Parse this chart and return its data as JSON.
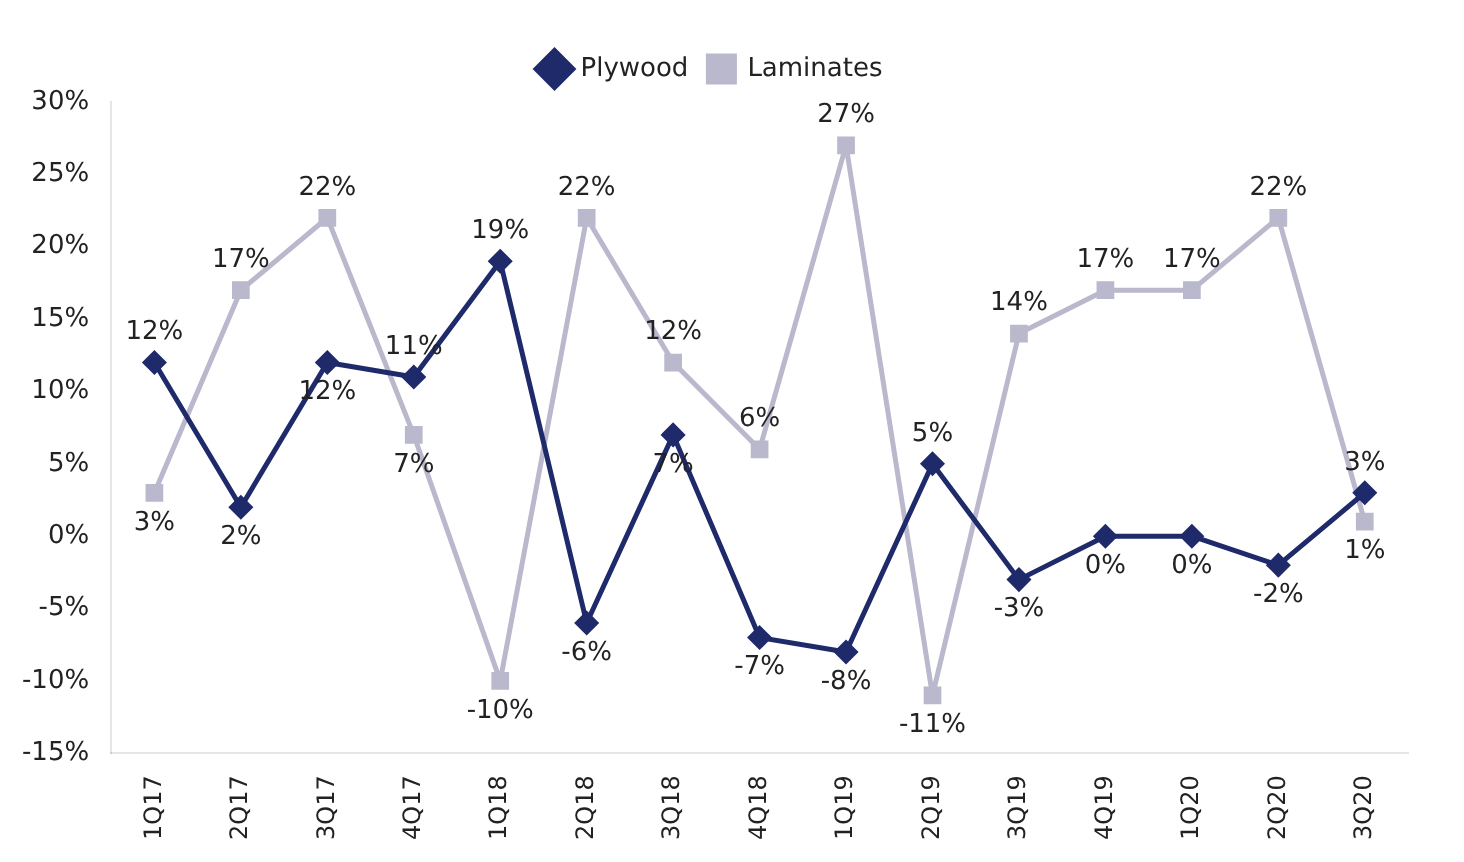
{
  "chart_data": {
    "type": "line",
    "categories": [
      "1Q17",
      "2Q17",
      "3Q17",
      "4Q17",
      "1Q18",
      "2Q18",
      "3Q18",
      "4Q18",
      "1Q19",
      "2Q19",
      "3Q19",
      "4Q19",
      "1Q20",
      "2Q20",
      "3Q20"
    ],
    "series": [
      {
        "name": "Plywood",
        "color": "#1f2a6b",
        "marker": "diamond",
        "values": [
          12,
          2,
          12,
          11,
          19,
          -6,
          7,
          -7,
          -8,
          5,
          -3,
          0,
          0,
          -2,
          3
        ],
        "value_labels": [
          "12%",
          "2%",
          "12%",
          "11%",
          "19%",
          "-6%",
          "7%",
          "-7%",
          "-8%",
          "5%",
          "-3%",
          "0%",
          "0%",
          "-2%",
          "3%"
        ]
      },
      {
        "name": "Laminates",
        "color": "#b9b8cc",
        "marker": "square",
        "values": [
          3,
          17,
          22,
          7,
          -10,
          22,
          12,
          6,
          27,
          -11,
          14,
          17,
          17,
          22,
          1
        ],
        "value_labels": [
          "3%",
          "17%",
          "22%",
          "7%",
          "-10%",
          "22%",
          "12%",
          "6%",
          "27%",
          "-11%",
          "14%",
          "17%",
          "17%",
          "22%",
          "1%"
        ]
      }
    ],
    "ylim": [
      -15,
      30
    ],
    "yticks": [
      {
        "value": -15,
        "label": "-15%"
      },
      {
        "value": -10,
        "label": "-10%"
      },
      {
        "value": -5,
        "label": "-5%"
      },
      {
        "value": 0,
        "label": "0%"
      },
      {
        "value": 5,
        "label": "5%"
      },
      {
        "value": 10,
        "label": "10%"
      },
      {
        "value": 15,
        "label": "15%"
      },
      {
        "value": 20,
        "label": "20%"
      },
      {
        "value": 25,
        "label": "25%"
      },
      {
        "value": 30,
        "label": "30%"
      }
    ],
    "grid": false,
    "legend": "top",
    "line_style": "solid"
  }
}
